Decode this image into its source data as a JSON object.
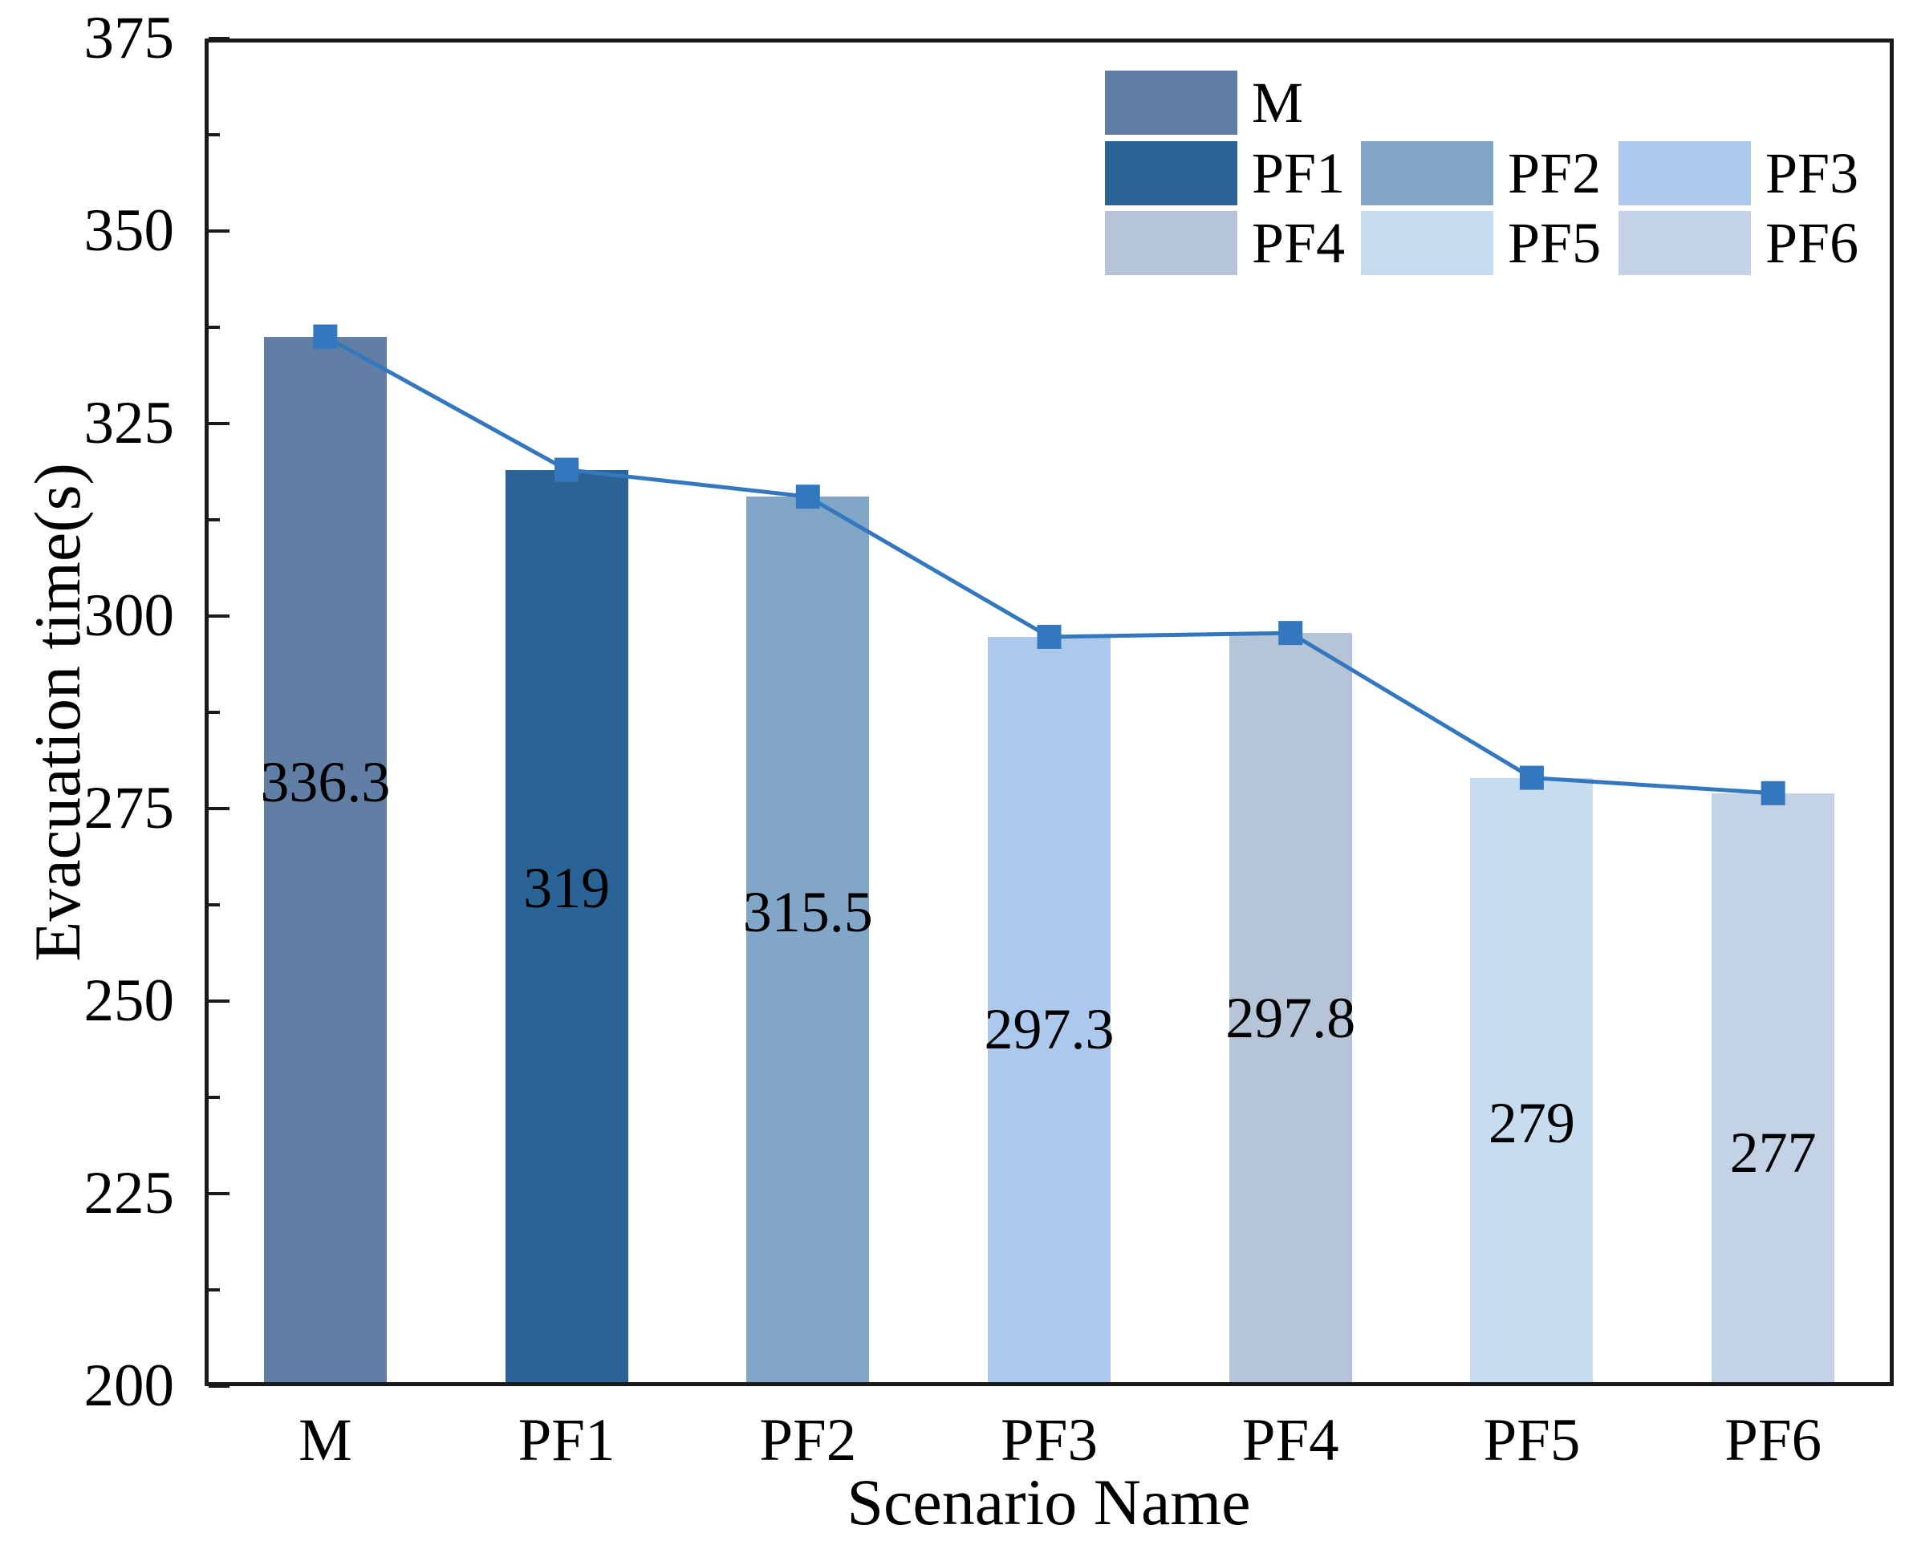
{
  "figure": {
    "background": "#ffffff"
  },
  "chart_data": {
    "type": "bar",
    "title": "",
    "xlabel": "Scenario Name",
    "ylabel": "Evacuation time(s)",
    "ylim": [
      200,
      375
    ],
    "ytick_major_step": 25,
    "ytick_minor_step": 12.5,
    "ytick_labels": [
      "200",
      "225",
      "250",
      "275",
      "300",
      "325",
      "350",
      "375"
    ],
    "grid": false,
    "legend_position": "top-right-inside",
    "categories": [
      "M",
      "PF1",
      "PF2",
      "PF3",
      "PF4",
      "PF5",
      "PF6"
    ],
    "series": [
      {
        "name": "evacuation-time-bars",
        "type": "bar",
        "values": [
          336.3,
          319,
          315.5,
          297.3,
          297.8,
          279,
          277
        ],
        "value_labels": [
          "336.3",
          "319",
          "315.5",
          "297.3",
          "297.8",
          "279",
          "277"
        ],
        "colors": [
          "#617FA4",
          "#2A6496",
          "#82A6C8",
          "#ACC8EC",
          "#B5C4D6",
          "#C8DCF0",
          "#C4D2E6"
        ]
      },
      {
        "name": "evacuation-time-trend-line",
        "type": "line",
        "values": [
          336.3,
          319,
          315.5,
          297.3,
          297.8,
          279,
          277
        ],
        "color": "#3377BE",
        "marker": "square",
        "marker_size": 30,
        "line_width": 5
      }
    ],
    "value_label_anchor_y": [
      278.4,
      264.7,
      261.6,
      246.4,
      247.8,
      234.2,
      230.3
    ],
    "legend": {
      "entries": [
        {
          "label": "M",
          "color": "#617FA4",
          "row": 0,
          "col": 0
        },
        {
          "label": "PF1",
          "color": "#2A6496",
          "row": 1,
          "col": 0
        },
        {
          "label": "PF2",
          "color": "#82A6C8",
          "row": 1,
          "col": 1
        },
        {
          "label": "PF3",
          "color": "#ACC8EC",
          "row": 1,
          "col": 2
        },
        {
          "label": "PF4",
          "color": "#B5C4D6",
          "row": 2,
          "col": 0
        },
        {
          "label": "PF5",
          "color": "#C8DCF0",
          "row": 2,
          "col": 1
        },
        {
          "label": "PF6",
          "color": "#C4D2E6",
          "row": 2,
          "col": 2
        }
      ]
    },
    "axis_color": "#1a1a1a",
    "text_color": "#000000"
  }
}
